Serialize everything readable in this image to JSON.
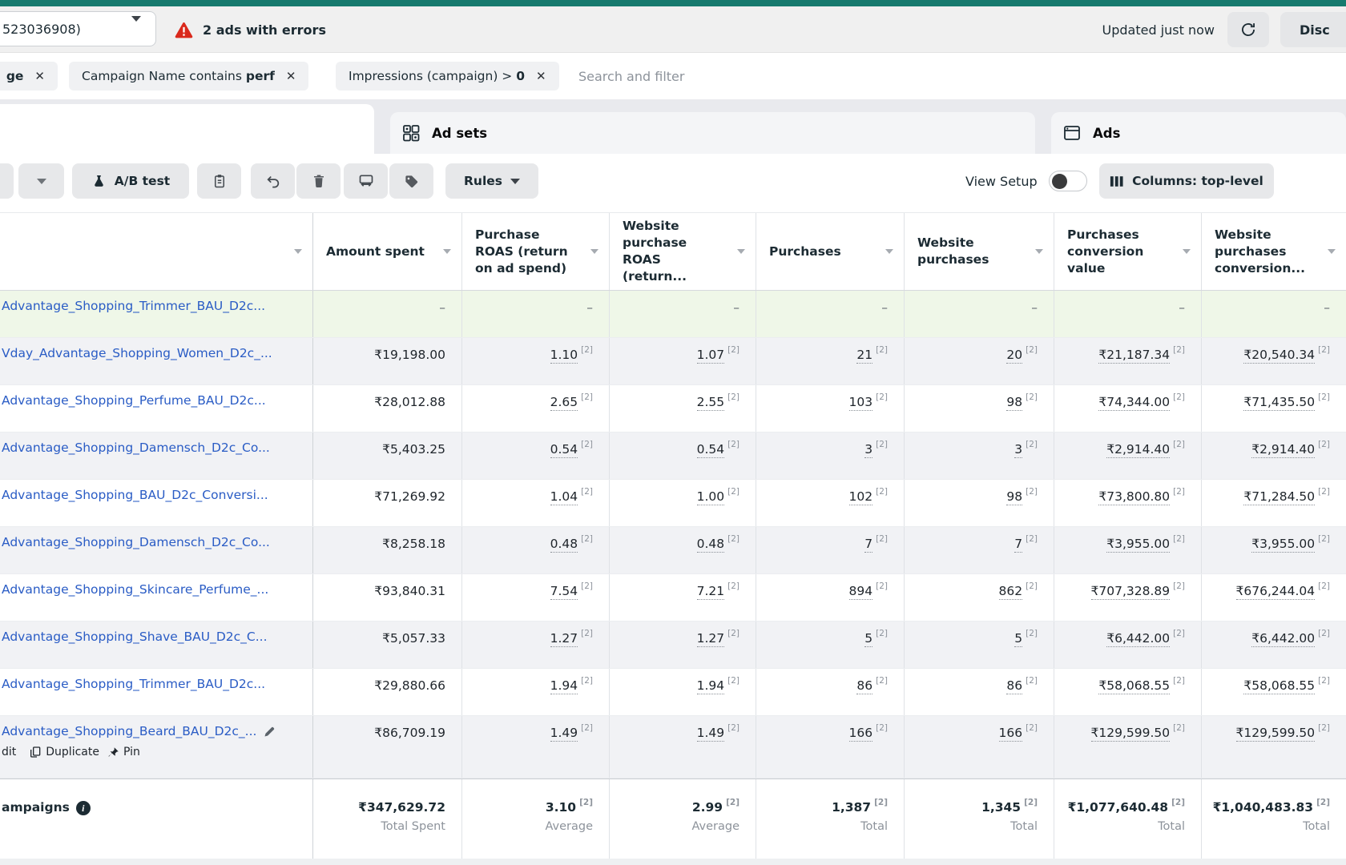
{
  "topbar": {
    "account": "523036908)",
    "errors": "2 ads with errors",
    "updated": "Updated just now",
    "discard": "Disc"
  },
  "filters": {
    "chips": [
      {
        "pre": "",
        "bold": "ge"
      },
      {
        "pre": "Campaign Name contains ",
        "bold": "perf"
      },
      {
        "pre": "Impressions (campaign) > ",
        "bold": "0"
      }
    ],
    "search_placeholder": "Search and filter"
  },
  "tabs": {
    "adsets_label": "Ad sets",
    "ads_label": "Ads"
  },
  "toolbar": {
    "ab_test": "A/B test",
    "rules": "Rules",
    "view_setup": "View Setup",
    "columns": "Columns: top-level"
  },
  "table": {
    "footnote_marker": "[2]",
    "columns": [
      {
        "label": "Amount spent"
      },
      {
        "label": "Purchase ROAS (return on ad spend)"
      },
      {
        "label": "Website purchase ROAS (return..."
      },
      {
        "label": "Purchases"
      },
      {
        "label": "Website purchases"
      },
      {
        "label": "Purchases conversion value"
      },
      {
        "label": "Website purchases conversion..."
      }
    ],
    "rows": [
      {
        "name": "Advantage_Shopping_Trimmer_BAU_D2c...",
        "variant": "draft",
        "footnotes": false,
        "values": [
          "–",
          "–",
          "–",
          "–",
          "–",
          "–",
          "–"
        ]
      },
      {
        "name": "Vday_Advantage_Shopping_Women_D2c_...",
        "variant": "striped",
        "values": [
          "₹19,198.00",
          "1.10",
          "1.07",
          "21",
          "20",
          "₹21,187.34",
          "₹20,540.34"
        ]
      },
      {
        "name": "Advantage_Shopping_Perfume_BAU_D2c...",
        "variant": "plain",
        "values": [
          "₹28,012.88",
          "2.65",
          "2.55",
          "103",
          "98",
          "₹74,344.00",
          "₹71,435.50"
        ]
      },
      {
        "name": "Advantage_Shopping_Damensch_D2c_Co...",
        "variant": "striped",
        "values": [
          "₹5,403.25",
          "0.54",
          "0.54",
          "3",
          "3",
          "₹2,914.40",
          "₹2,914.40"
        ]
      },
      {
        "name": "Advantage_Shopping_BAU_D2c_Conversi...",
        "variant": "plain",
        "values": [
          "₹71,269.92",
          "1.04",
          "1.00",
          "102",
          "98",
          "₹73,800.80",
          "₹71,284.50"
        ]
      },
      {
        "name": "Advantage_Shopping_Damensch_D2c_Co...",
        "variant": "striped",
        "values": [
          "₹8,258.18",
          "0.48",
          "0.48",
          "7",
          "7",
          "₹3,955.00",
          "₹3,955.00"
        ]
      },
      {
        "name": "Advantage_Shopping_Skincare_Perfume_...",
        "variant": "plain",
        "values": [
          "₹93,840.31",
          "7.54",
          "7.21",
          "894",
          "862",
          "₹707,328.89",
          "₹676,244.04"
        ]
      },
      {
        "name": "Advantage_Shopping_Shave_BAU_D2c_C...",
        "variant": "striped",
        "values": [
          "₹5,057.33",
          "1.27",
          "1.27",
          "5",
          "5",
          "₹6,442.00",
          "₹6,442.00"
        ]
      },
      {
        "name": "Advantage_Shopping_Trimmer_BAU_D2c...",
        "variant": "plain",
        "values": [
          "₹29,880.66",
          "1.94",
          "1.94",
          "86",
          "86",
          "₹58,068.55",
          "₹58,068.55"
        ]
      },
      {
        "name": "Advantage_Shopping_Beard_BAU_D2c_...",
        "variant": "striped",
        "tall": true,
        "pencil": true,
        "actions": [
          "dit",
          "Duplicate",
          "Pin"
        ],
        "values": [
          "₹86,709.19",
          "1.49",
          "1.49",
          "166",
          "166",
          "₹129,599.50",
          "₹129,599.50"
        ]
      }
    ],
    "footer": {
      "label": "ampaigns",
      "cells": [
        {
          "value": "₹347,629.72",
          "sub": "Total Spent",
          "footnote": false
        },
        {
          "value": "3.10",
          "sub": "Average"
        },
        {
          "value": "2.99",
          "sub": "Average"
        },
        {
          "value": "1,387",
          "sub": "Total"
        },
        {
          "value": "1,345",
          "sub": "Total"
        },
        {
          "value": "₹1,077,640.48",
          "sub": "Total"
        },
        {
          "value": "₹1,040,483.83",
          "sub": "Total"
        }
      ]
    }
  },
  "colors": {
    "teal_strip": "#177a6e",
    "error_red": "#da291c",
    "link_blue": "#2a5cc5",
    "row_stripe": "#f1f2f5",
    "row_draft_green": "#eff7e8"
  }
}
